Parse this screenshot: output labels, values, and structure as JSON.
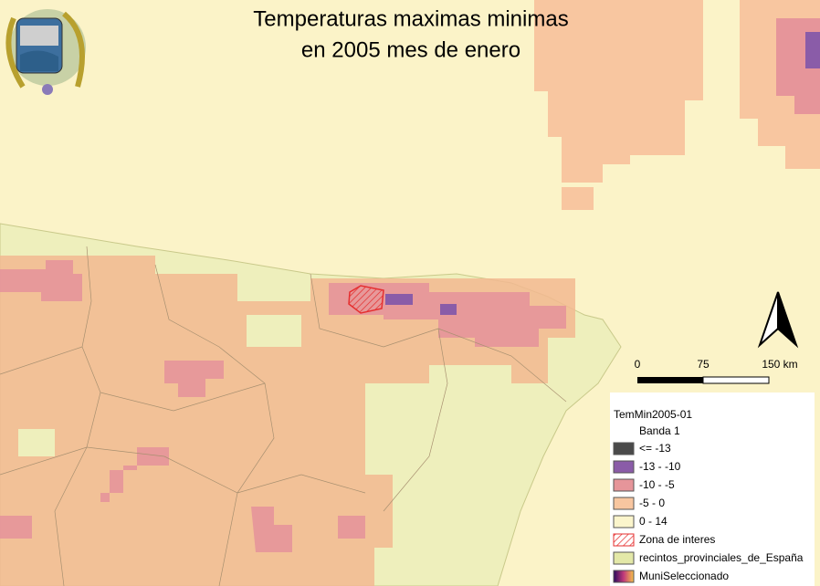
{
  "title": [
    "Temperaturas maximas minimas",
    "en 2005 mes de enero"
  ],
  "scale_bar": [
    "0",
    "75",
    "150 km"
  ],
  "legend": {
    "title": "TemMin2005-01",
    "subtitle": "Banda 1",
    "items": [
      {
        "label": "<= -13",
        "color": "#4a4a4a"
      },
      {
        "label": "-13 - -10",
        "color": "#8a5ca8"
      },
      {
        "label": "-10 - -5",
        "color": "#e6959a"
      },
      {
        "label": "-5 - 0",
        "color": "#f8c6a0"
      },
      {
        "label": "0 - 14",
        "color": "#fbf5cc"
      },
      {
        "label": "Zona de interes"
      },
      {
        "label": "recintos_provinciales_de_España",
        "color": "#e3e8a8"
      },
      {
        "label": "MuniSeleccionado"
      }
    ]
  }
}
